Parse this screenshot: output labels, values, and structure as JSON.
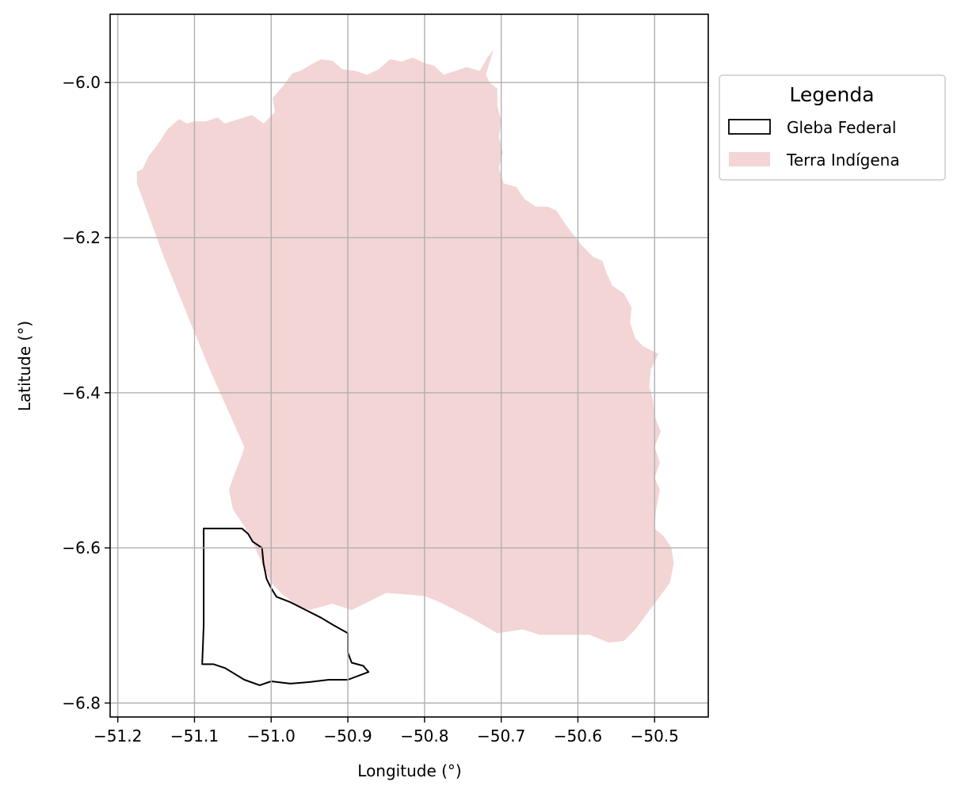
{
  "chart_data": {
    "type": "map",
    "xlabel": "Longitude (°)",
    "ylabel": "Latitude (°)",
    "xlim": [
      -51.21,
      -50.43
    ],
    "ylim": [
      -6.818,
      -5.912
    ],
    "xticks": [
      -51.2,
      -51.1,
      -51.0,
      -50.9,
      -50.8,
      -50.7,
      -50.6,
      -50.5
    ],
    "xtick_labels": [
      "−51.2",
      "−51.1",
      "−51.0",
      "−50.9",
      "−50.8",
      "−50.7",
      "−50.6",
      "−50.5"
    ],
    "yticks": [
      -6.8,
      -6.6,
      -6.4,
      -6.2,
      -6.0
    ],
    "ytick_labels": [
      "−6.8",
      "−6.6",
      "−6.4",
      "−6.2",
      "−6.0"
    ],
    "grid": true,
    "legend": {
      "title": "Legenda",
      "placement": "outside upper right",
      "entries": [
        {
          "label": "Gleba Federal",
          "style": "outline",
          "color": "#000000"
        },
        {
          "label": "Terra Indígena",
          "style": "fill",
          "color": "#f2d5d4"
        }
      ]
    },
    "layers": [
      {
        "name": "Terra Indígena",
        "fill": "#f2d5d4",
        "polygon": [
          [
            -51.175,
            -6.115
          ],
          [
            -51.168,
            -6.112
          ],
          [
            -51.16,
            -6.095
          ],
          [
            -51.148,
            -6.08
          ],
          [
            -51.135,
            -6.06
          ],
          [
            -51.12,
            -6.047
          ],
          [
            -51.11,
            -6.053
          ],
          [
            -51.1,
            -6.05
          ],
          [
            -51.085,
            -6.05
          ],
          [
            -51.07,
            -6.045
          ],
          [
            -51.06,
            -6.053
          ],
          [
            -51.045,
            -6.048
          ],
          [
            -51.025,
            -6.042
          ],
          [
            -51.01,
            -6.053
          ],
          [
            -50.995,
            -6.038
          ],
          [
            -50.998,
            -6.02
          ],
          [
            -50.985,
            -6.005
          ],
          [
            -50.972,
            -5.988
          ],
          [
            -50.962,
            -5.985
          ],
          [
            -50.95,
            -5.978
          ],
          [
            -50.935,
            -5.97
          ],
          [
            -50.92,
            -5.972
          ],
          [
            -50.907,
            -5.983
          ],
          [
            -50.89,
            -5.985
          ],
          [
            -50.875,
            -5.99
          ],
          [
            -50.86,
            -5.983
          ],
          [
            -50.845,
            -5.97
          ],
          [
            -50.83,
            -5.973
          ],
          [
            -50.815,
            -5.968
          ],
          [
            -50.8,
            -5.975
          ],
          [
            -50.788,
            -5.978
          ],
          [
            -50.775,
            -5.99
          ],
          [
            -50.76,
            -5.985
          ],
          [
            -50.745,
            -5.98
          ],
          [
            -50.728,
            -5.985
          ],
          [
            -50.718,
            -5.968
          ],
          [
            -50.71,
            -5.957
          ],
          [
            -50.72,
            -5.99
          ],
          [
            -50.715,
            -6.0
          ],
          [
            -50.705,
            -6.008
          ],
          [
            -50.705,
            -6.03
          ],
          [
            -50.7,
            -6.05
          ],
          [
            -50.703,
            -6.07
          ],
          [
            -50.698,
            -6.09
          ],
          [
            -50.703,
            -6.11
          ],
          [
            -50.697,
            -6.13
          ],
          [
            -50.68,
            -6.135
          ],
          [
            -50.67,
            -6.15
          ],
          [
            -50.655,
            -6.16
          ],
          [
            -50.64,
            -6.16
          ],
          [
            -50.628,
            -6.165
          ],
          [
            -50.618,
            -6.18
          ],
          [
            -50.607,
            -6.195
          ],
          [
            -50.595,
            -6.21
          ],
          [
            -50.58,
            -6.225
          ],
          [
            -50.568,
            -6.23
          ],
          [
            -50.563,
            -6.245
          ],
          [
            -50.555,
            -6.262
          ],
          [
            -50.54,
            -6.272
          ],
          [
            -50.53,
            -6.29
          ],
          [
            -50.532,
            -6.31
          ],
          [
            -50.525,
            -6.33
          ],
          [
            -50.515,
            -6.34
          ],
          [
            -50.505,
            -6.345
          ],
          [
            -50.495,
            -6.35
          ],
          [
            -50.505,
            -6.37
          ],
          [
            -50.507,
            -6.392
          ],
          [
            -50.502,
            -6.41
          ],
          [
            -50.5,
            -6.43
          ],
          [
            -50.492,
            -6.45
          ],
          [
            -50.5,
            -6.47
          ],
          [
            -50.493,
            -6.49
          ],
          [
            -50.5,
            -6.51
          ],
          [
            -50.493,
            -6.525
          ],
          [
            -50.498,
            -6.55
          ],
          [
            -50.5,
            -6.575
          ],
          [
            -50.488,
            -6.585
          ],
          [
            -50.478,
            -6.6
          ],
          [
            -50.475,
            -6.62
          ],
          [
            -50.48,
            -6.645
          ],
          [
            -50.495,
            -6.665
          ],
          [
            -50.51,
            -6.685
          ],
          [
            -50.525,
            -6.705
          ],
          [
            -50.54,
            -6.72
          ],
          [
            -50.56,
            -6.722
          ],
          [
            -50.585,
            -6.712
          ],
          [
            -50.605,
            -6.712
          ],
          [
            -50.625,
            -6.712
          ],
          [
            -50.65,
            -6.712
          ],
          [
            -50.672,
            -6.705
          ],
          [
            -50.705,
            -6.71
          ],
          [
            -50.74,
            -6.69
          ],
          [
            -50.78,
            -6.67
          ],
          [
            -50.8,
            -6.662
          ],
          [
            -50.85,
            -6.658
          ],
          [
            -50.895,
            -6.68
          ],
          [
            -50.92,
            -6.672
          ],
          [
            -50.95,
            -6.68
          ],
          [
            -50.965,
            -6.675
          ],
          [
            -50.985,
            -6.66
          ],
          [
            -51.0,
            -6.645
          ],
          [
            -51.012,
            -6.62
          ],
          [
            -51.025,
            -6.59
          ],
          [
            -51.035,
            -6.572
          ],
          [
            -51.05,
            -6.55
          ],
          [
            -51.055,
            -6.525
          ],
          [
            -51.048,
            -6.505
          ],
          [
            -51.038,
            -6.48
          ],
          [
            -51.035,
            -6.47
          ],
          [
            -51.08,
            -6.37
          ],
          [
            -51.105,
            -6.31
          ],
          [
            -51.14,
            -6.225
          ],
          [
            -51.175,
            -6.13
          ]
        ]
      },
      {
        "name": "Gleba Federal",
        "fill": "none",
        "stroke": "#000000",
        "polygon": [
          [
            -51.088,
            -6.575
          ],
          [
            -51.038,
            -6.575
          ],
          [
            -51.03,
            -6.582
          ],
          [
            -51.024,
            -6.592
          ],
          [
            -51.012,
            -6.6
          ],
          [
            -51.01,
            -6.62
          ],
          [
            -51.006,
            -6.64
          ],
          [
            -51.0,
            -6.652
          ],
          [
            -50.993,
            -6.663
          ],
          [
            -50.975,
            -6.67
          ],
          [
            -50.955,
            -6.68
          ],
          [
            -50.935,
            -6.69
          ],
          [
            -50.918,
            -6.7
          ],
          [
            -50.9,
            -6.71
          ],
          [
            -50.9,
            -6.735
          ],
          [
            -50.895,
            -6.748
          ],
          [
            -50.88,
            -6.752
          ],
          [
            -50.873,
            -6.76
          ],
          [
            -50.9,
            -6.77
          ],
          [
            -50.925,
            -6.77
          ],
          [
            -50.95,
            -6.773
          ],
          [
            -50.975,
            -6.775
          ],
          [
            -51.0,
            -6.772
          ],
          [
            -51.015,
            -6.777
          ],
          [
            -51.035,
            -6.77
          ],
          [
            -51.06,
            -6.755
          ],
          [
            -51.075,
            -6.75
          ],
          [
            -51.09,
            -6.75
          ],
          [
            -51.088,
            -6.7
          ],
          [
            -51.088,
            -6.64
          ],
          [
            -51.088,
            -6.6
          ]
        ]
      }
    ]
  }
}
